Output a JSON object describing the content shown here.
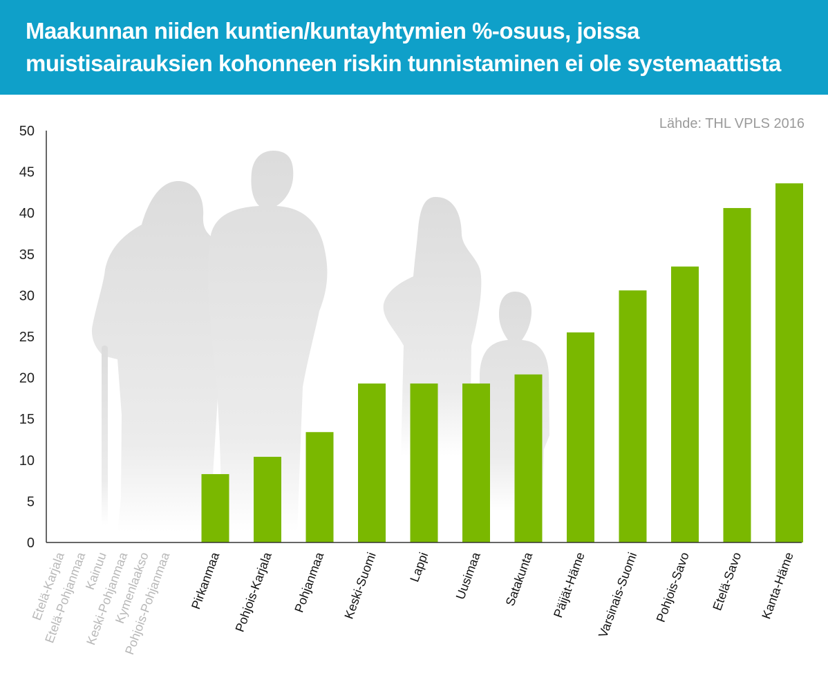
{
  "header": {
    "title_line1": "Maakunnan niiden kuntien/kuntayhtymien %-osuus, joissa",
    "title_line2": "muistisairauksien kohonneen riskin tunnistaminen ei ole systemaattista",
    "background_color": "#0fa0c9"
  },
  "source": "Lähde: THL VPLS 2016",
  "chart_data": {
    "type": "bar",
    "title": "Maakunnan niiden kuntien/kuntayhtymien %-osuus, joissa muistisairauksien kohonneen riskin tunnistaminen ei ole systemaattista",
    "categories": [
      "Etelä-Karjala",
      "Etelä-Pohjanmaa",
      "Kainuu",
      "Keski-Pohjanmaa",
      "Kymenlaakso",
      "Pohjois-Pohjanmaa",
      "Pirkanmaa",
      "Pohjois-Karjala",
      "Pohjanmaa",
      "Keski-Suomi",
      "Lappi",
      "Uusimaa",
      "Satakunta",
      "Päijät-Häme",
      "Varsinais-Suomi",
      "Pohjois-Savo",
      "Etelä-Savo",
      "Kanta-Häme"
    ],
    "values": [
      null,
      null,
      null,
      null,
      null,
      null,
      8.3,
      10.4,
      13.4,
      19.3,
      19.3,
      19.3,
      20.4,
      25.5,
      30.6,
      33.5,
      40.6,
      43.6
    ],
    "missing_categories": [
      "Etelä-Karjala",
      "Etelä-Pohjanmaa",
      "Kainuu",
      "Keski-Pohjanmaa",
      "Kymenlaakso",
      "Pohjois-Pohjanmaa"
    ],
    "yticks": [
      0,
      5,
      10,
      15,
      20,
      25,
      30,
      35,
      40,
      45,
      50
    ],
    "ylim": [
      0,
      50
    ],
    "xlabel": "",
    "ylabel": "",
    "grid": false,
    "bar_color": "#7ab800",
    "missing_label_color": "#b8b8b8",
    "background_illustration": "grey silhouettes of elderly couple and family"
  }
}
